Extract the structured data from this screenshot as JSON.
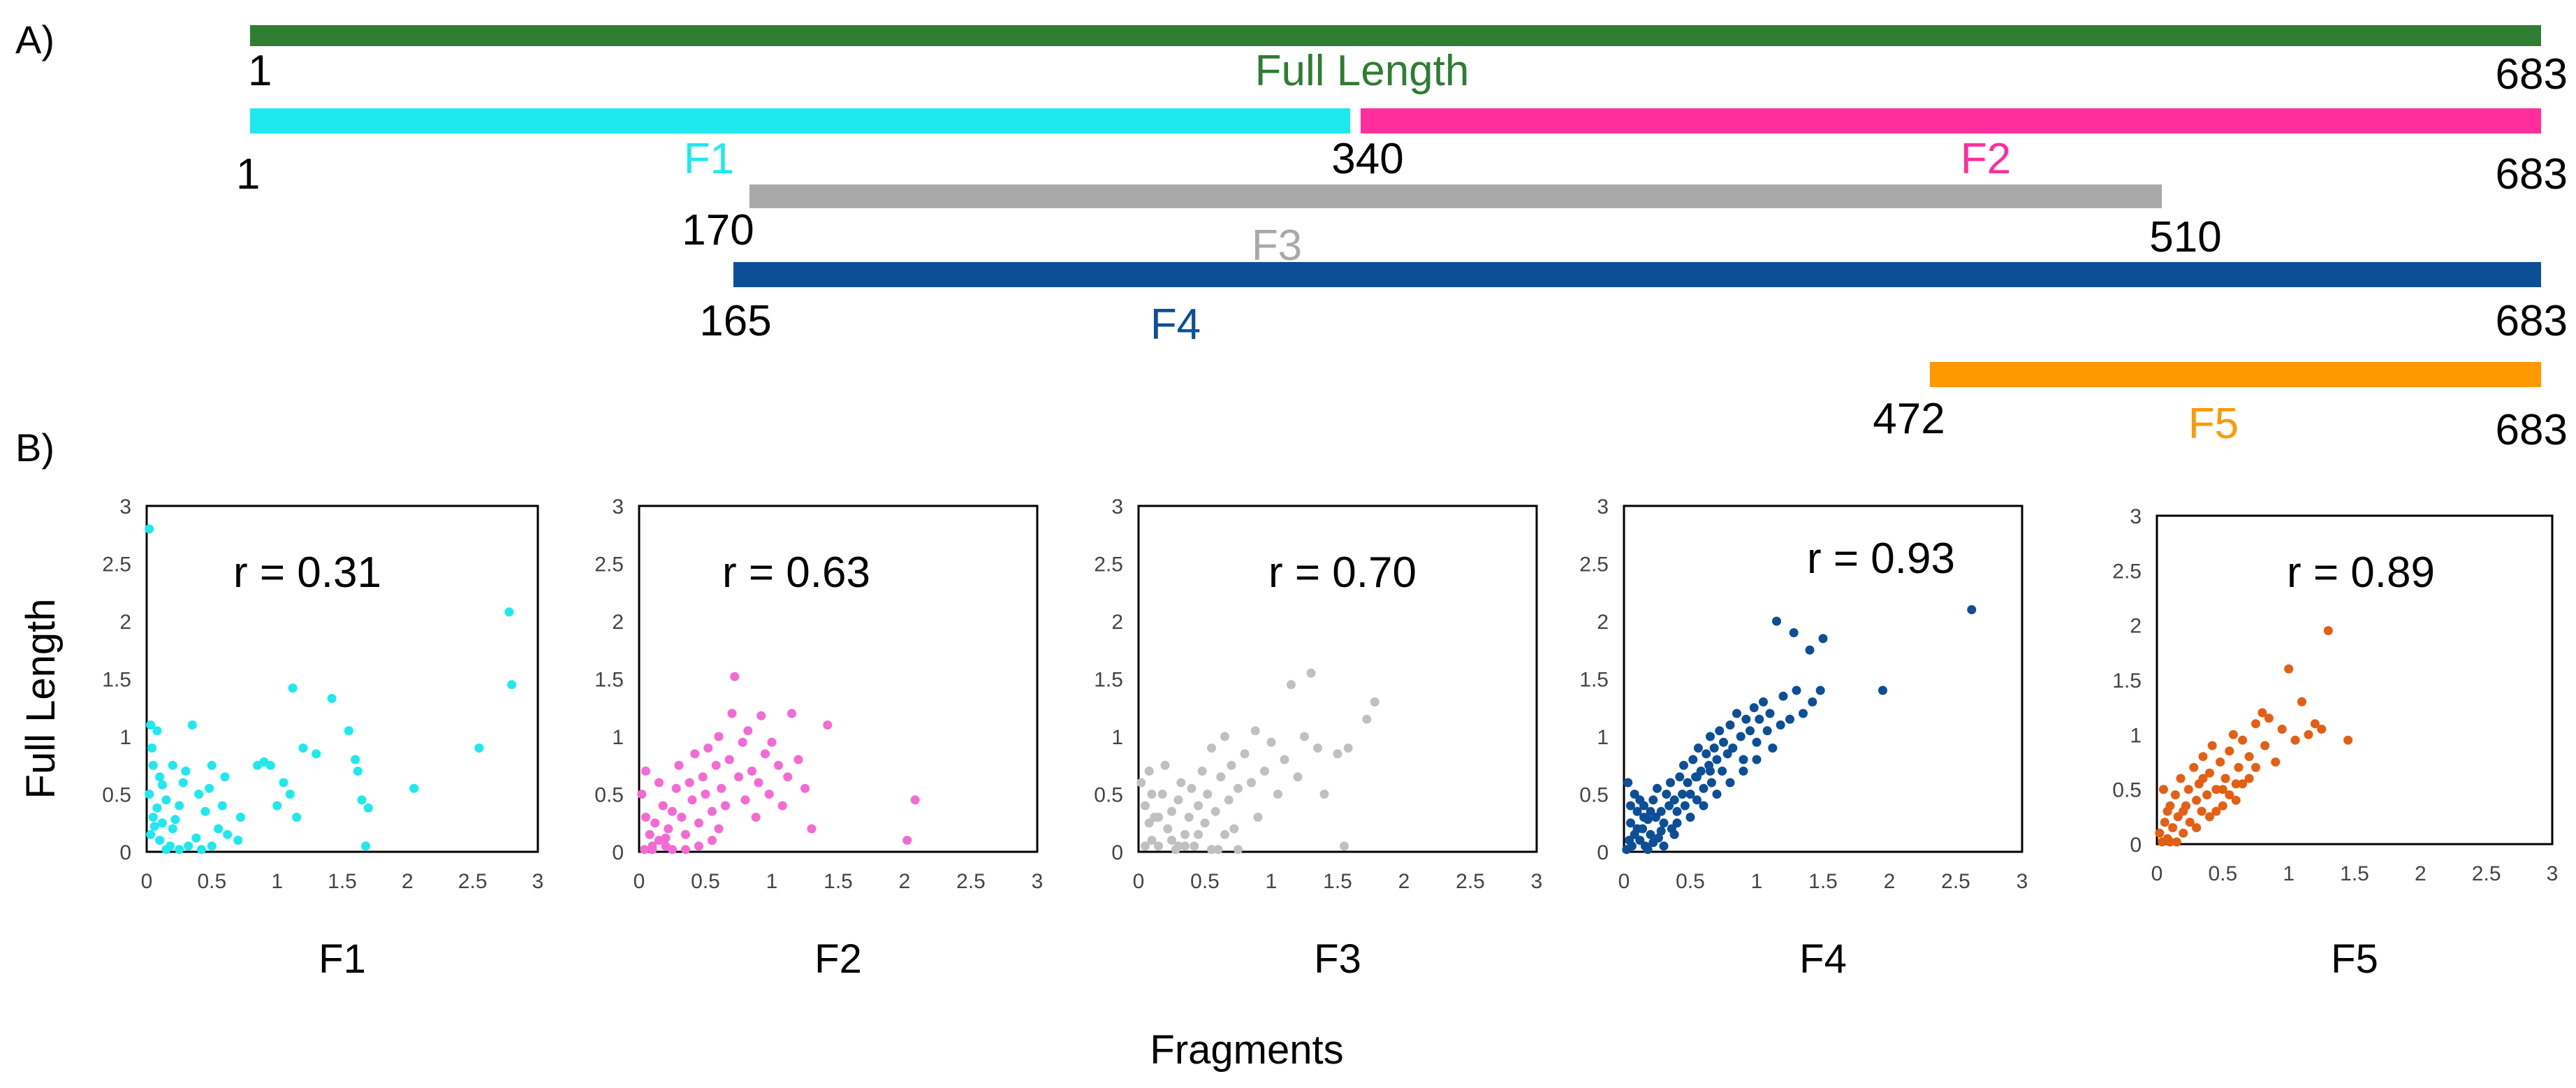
{
  "panel_a_label": "A)",
  "panel_b_label": "B)",
  "bars": [
    {
      "name": "Full Length",
      "start_label": "1",
      "end_label": "683",
      "color": "#2e7d32"
    },
    {
      "name": "F1",
      "start_label": "1",
      "end_label": "340",
      "color": "#1de9ee"
    },
    {
      "name": "F2",
      "start_label": "340",
      "end_label": "683",
      "color": "#ff2e9c"
    },
    {
      "name": "F3",
      "start_label": "170",
      "end_label": "510",
      "color": "#a9a9a9"
    },
    {
      "name": "F4",
      "start_label": "165",
      "end_label": "683",
      "color": "#0d4f96"
    },
    {
      "name": "F5",
      "start_label": "472",
      "end_label": "683",
      "color": "#ff9900"
    }
  ],
  "chart_data": [
    {
      "type": "scatter",
      "title": "",
      "xlabel": "F1",
      "ylabel": "Full Length",
      "xlim": [
        0,
        3
      ],
      "ylim": [
        0,
        3
      ],
      "ticks": [
        "0",
        "0.5",
        "1",
        "1.5",
        "2",
        "2.5",
        "3"
      ],
      "r_label": "r = 0.31",
      "color": "#1de9ee",
      "points": [
        [
          0.02,
          2.8
        ],
        [
          0.03,
          1.1
        ],
        [
          0.08,
          1.05
        ],
        [
          0.05,
          0.75
        ],
        [
          0.1,
          0.65
        ],
        [
          0.02,
          0.5
        ],
        [
          0.15,
          0.45
        ],
        [
          0.05,
          0.3
        ],
        [
          0.12,
          0.25
        ],
        [
          0.2,
          0.2
        ],
        [
          0.03,
          0.15
        ],
        [
          0.1,
          0.1
        ],
        [
          0.18,
          0.05
        ],
        [
          0.25,
          0.02
        ],
        [
          0.3,
          0.7
        ],
        [
          0.35,
          1.1
        ],
        [
          0.4,
          0.5
        ],
        [
          0.45,
          0.35
        ],
        [
          0.5,
          0.75
        ],
        [
          0.55,
          0.2
        ],
        [
          0.6,
          0.65
        ],
        [
          0.32,
          0.05
        ],
        [
          0.42,
          0.02
        ],
        [
          0.25,
          0.4
        ],
        [
          0.28,
          0.6
        ],
        [
          0.48,
          0.55
        ],
        [
          0.58,
          0.4
        ],
        [
          0.62,
          0.15
        ],
        [
          0.7,
          0.1
        ],
        [
          0.85,
          0.75
        ],
        [
          0.9,
          0.78
        ],
        [
          0.95,
          0.75
        ],
        [
          1.05,
          0.6
        ],
        [
          1.1,
          0.5
        ],
        [
          1.15,
          0.3
        ],
        [
          1.12,
          1.42
        ],
        [
          1.2,
          0.9
        ],
        [
          1.3,
          0.85
        ],
        [
          1.42,
          1.33
        ],
        [
          1.55,
          1.05
        ],
        [
          1.6,
          0.8
        ],
        [
          1.62,
          0.7
        ],
        [
          1.65,
          0.45
        ],
        [
          1.7,
          0.38
        ],
        [
          1.68,
          0.05
        ],
        [
          2.05,
          0.55
        ],
        [
          2.55,
          0.9
        ],
        [
          2.78,
          2.08
        ],
        [
          2.8,
          1.45
        ],
        [
          0.15,
          0.02
        ],
        [
          0.06,
          0.22
        ],
        [
          0.22,
          0.28
        ],
        [
          0.38,
          0.12
        ],
        [
          0.72,
          0.3
        ],
        [
          1.0,
          0.4
        ],
        [
          0.5,
          0.05
        ],
        [
          0.08,
          0.38
        ],
        [
          0.12,
          0.58
        ],
        [
          0.2,
          0.75
        ],
        [
          0.04,
          0.9
        ]
      ]
    },
    {
      "type": "scatter",
      "title": "",
      "xlabel": "F2",
      "ylabel": "",
      "xlim": [
        0,
        3
      ],
      "ylim": [
        0,
        3
      ],
      "ticks": [
        "0",
        "0.5",
        "1",
        "1.5",
        "2",
        "2.5",
        "3"
      ],
      "r_label": "r = 0.63",
      "color": "#f46ad4",
      "points": [
        [
          0.02,
          0.5
        ],
        [
          0.05,
          0.3
        ],
        [
          0.08,
          0.15
        ],
        [
          0.1,
          0.05
        ],
        [
          0.12,
          0.25
        ],
        [
          0.15,
          0.1
        ],
        [
          0.18,
          0.4
        ],
        [
          0.2,
          0.05
        ],
        [
          0.22,
          0.2
        ],
        [
          0.25,
          0.35
        ],
        [
          0.28,
          0.55
        ],
        [
          0.3,
          0.75
        ],
        [
          0.32,
          0.3
        ],
        [
          0.35,
          0.15
        ],
        [
          0.38,
          0.6
        ],
        [
          0.4,
          0.45
        ],
        [
          0.42,
          0.85
        ],
        [
          0.45,
          0.25
        ],
        [
          0.48,
          0.65
        ],
        [
          0.5,
          0.5
        ],
        [
          0.52,
          0.9
        ],
        [
          0.55,
          0.35
        ],
        [
          0.58,
          0.75
        ],
        [
          0.6,
          1.0
        ],
        [
          0.62,
          0.55
        ],
        [
          0.65,
          0.4
        ],
        [
          0.68,
          0.8
        ],
        [
          0.7,
          1.2
        ],
        [
          0.72,
          1.52
        ],
        [
          0.75,
          0.65
        ],
        [
          0.78,
          0.95
        ],
        [
          0.8,
          0.45
        ],
        [
          0.82,
          1.05
        ],
        [
          0.85,
          0.7
        ],
        [
          0.88,
          0.3
        ],
        [
          0.9,
          0.6
        ],
        [
          0.92,
          1.18
        ],
        [
          0.95,
          0.85
        ],
        [
          0.98,
          0.5
        ],
        [
          1.0,
          0.95
        ],
        [
          1.05,
          0.75
        ],
        [
          1.08,
          0.4
        ],
        [
          1.12,
          0.65
        ],
        [
          1.15,
          1.2
        ],
        [
          1.2,
          0.8
        ],
        [
          1.25,
          0.55
        ],
        [
          1.3,
          0.2
        ],
        [
          1.42,
          1.1
        ],
        [
          2.02,
          0.1
        ],
        [
          2.08,
          0.45
        ],
        [
          0.04,
          0.02
        ],
        [
          0.1,
          0.02
        ],
        [
          0.2,
          0.12
        ],
        [
          0.35,
          0.02
        ],
        [
          0.45,
          0.05
        ],
        [
          0.6,
          0.2
        ],
        [
          0.15,
          0.6
        ],
        [
          0.05,
          0.7
        ],
        [
          0.25,
          0.02
        ],
        [
          0.55,
          0.1
        ]
      ]
    },
    {
      "type": "scatter",
      "title": "",
      "xlabel": "F3",
      "ylabel": "",
      "xlim": [
        0,
        3
      ],
      "ylim": [
        0,
        3
      ],
      "ticks": [
        "0",
        "0.5",
        "1",
        "1.5",
        "2",
        "2.5",
        "3"
      ],
      "r_label": "r = 0.70",
      "color": "#c0c0c0",
      "points": [
        [
          0.02,
          0.6
        ],
        [
          0.05,
          0.4
        ],
        [
          0.08,
          0.25
        ],
        [
          0.1,
          0.1
        ],
        [
          0.12,
          0.3
        ],
        [
          0.15,
          0.05
        ],
        [
          0.18,
          0.5
        ],
        [
          0.2,
          0.75
        ],
        [
          0.22,
          0.2
        ],
        [
          0.25,
          0.35
        ],
        [
          0.28,
          0.02
        ],
        [
          0.3,
          0.45
        ],
        [
          0.32,
          0.6
        ],
        [
          0.35,
          0.15
        ],
        [
          0.38,
          0.3
        ],
        [
          0.4,
          0.55
        ],
        [
          0.42,
          0.05
        ],
        [
          0.45,
          0.4
        ],
        [
          0.48,
          0.7
        ],
        [
          0.5,
          0.25
        ],
        [
          0.52,
          0.5
        ],
        [
          0.55,
          0.9
        ],
        [
          0.58,
          0.35
        ],
        [
          0.6,
          0.02
        ],
        [
          0.62,
          0.65
        ],
        [
          0.65,
          1.0
        ],
        [
          0.68,
          0.45
        ],
        [
          0.7,
          0.75
        ],
        [
          0.72,
          0.2
        ],
        [
          0.75,
          0.55
        ],
        [
          0.8,
          0.85
        ],
        [
          0.85,
          0.6
        ],
        [
          0.88,
          1.05
        ],
        [
          0.9,
          0.3
        ],
        [
          0.95,
          0.7
        ],
        [
          1.0,
          0.95
        ],
        [
          1.05,
          0.5
        ],
        [
          1.1,
          0.8
        ],
        [
          1.15,
          1.45
        ],
        [
          1.2,
          0.65
        ],
        [
          1.25,
          1.0
        ],
        [
          1.3,
          1.55
        ],
        [
          1.35,
          0.9
        ],
        [
          1.4,
          0.5
        ],
        [
          1.5,
          0.85
        ],
        [
          1.55,
          0.05
        ],
        [
          1.58,
          0.9
        ],
        [
          1.72,
          1.15
        ],
        [
          1.78,
          1.3
        ],
        [
          0.05,
          0.05
        ],
        [
          0.1,
          0.5
        ],
        [
          0.15,
          0.3
        ],
        [
          0.25,
          0.1
        ],
        [
          0.35,
          0.05
        ],
        [
          0.45,
          0.15
        ],
        [
          0.55,
          0.02
        ],
        [
          0.75,
          0.02
        ],
        [
          0.65,
          0.15
        ],
        [
          0.08,
          0.7
        ],
        [
          0.3,
          0.05
        ]
      ]
    },
    {
      "type": "scatter",
      "title": "",
      "xlabel": "F4",
      "ylabel": "",
      "xlim": [
        0,
        3
      ],
      "ylim": [
        0,
        3
      ],
      "ticks": [
        "0",
        "0.5",
        "1",
        "1.5",
        "2",
        "2.5",
        "3"
      ],
      "r_label": "r = 0.93",
      "color": "#0d4f96",
      "points": [
        [
          0.02,
          0.02
        ],
        [
          0.04,
          0.1
        ],
        [
          0.05,
          0.25
        ],
        [
          0.06,
          0.05
        ],
        [
          0.08,
          0.15
        ],
        [
          0.1,
          0.35
        ],
        [
          0.12,
          0.1
        ],
        [
          0.14,
          0.2
        ],
        [
          0.15,
          0.4
        ],
        [
          0.16,
          0.05
        ],
        [
          0.18,
          0.28
        ],
        [
          0.2,
          0.15
        ],
        [
          0.22,
          0.45
        ],
        [
          0.24,
          0.3
        ],
        [
          0.25,
          0.55
        ],
        [
          0.26,
          0.12
        ],
        [
          0.28,
          0.35
        ],
        [
          0.3,
          0.25
        ],
        [
          0.32,
          0.5
        ],
        [
          0.34,
          0.4
        ],
        [
          0.35,
          0.6
        ],
        [
          0.36,
          0.2
        ],
        [
          0.38,
          0.45
        ],
        [
          0.4,
          0.35
        ],
        [
          0.42,
          0.65
        ],
        [
          0.44,
          0.5
        ],
        [
          0.45,
          0.75
        ],
        [
          0.46,
          0.4
        ],
        [
          0.48,
          0.6
        ],
        [
          0.5,
          0.5
        ],
        [
          0.52,
          0.8
        ],
        [
          0.54,
          0.65
        ],
        [
          0.55,
          0.45
        ],
        [
          0.56,
          0.9
        ],
        [
          0.58,
          0.7
        ],
        [
          0.6,
          0.55
        ],
        [
          0.62,
          0.85
        ],
        [
          0.64,
          0.75
        ],
        [
          0.65,
          1.0
        ],
        [
          0.66,
          0.6
        ],
        [
          0.68,
          0.9
        ],
        [
          0.7,
          0.8
        ],
        [
          0.72,
          1.05
        ],
        [
          0.74,
          0.7
        ],
        [
          0.75,
          0.95
        ],
        [
          0.78,
          0.85
        ],
        [
          0.8,
          1.1
        ],
        [
          0.82,
          0.9
        ],
        [
          0.85,
          1.2
        ],
        [
          0.88,
          1.0
        ],
        [
          0.9,
          0.8
        ],
        [
          0.92,
          1.15
        ],
        [
          0.95,
          1.05
        ],
        [
          0.98,
          1.25
        ],
        [
          1.0,
          0.95
        ],
        [
          1.02,
          1.15
        ],
        [
          1.05,
          1.3
        ],
        [
          1.08,
          1.05
        ],
        [
          1.1,
          1.2
        ],
        [
          1.12,
          0.9
        ],
        [
          1.15,
          2.0
        ],
        [
          1.18,
          1.1
        ],
        [
          1.2,
          1.35
        ],
        [
          1.25,
          1.15
        ],
        [
          1.28,
          1.9
        ],
        [
          1.3,
          1.4
        ],
        [
          1.35,
          1.2
        ],
        [
          1.4,
          1.75
        ],
        [
          1.42,
          1.3
        ],
        [
          1.5,
          1.85
        ],
        [
          1.48,
          1.4
        ],
        [
          1.95,
          1.4
        ],
        [
          2.62,
          2.1
        ],
        [
          0.03,
          0.6
        ],
        [
          0.08,
          0.5
        ],
        [
          0.12,
          0.45
        ],
        [
          0.18,
          0.02
        ],
        [
          0.22,
          0.08
        ],
        [
          0.3,
          0.05
        ],
        [
          0.38,
          0.15
        ],
        [
          0.05,
          0.4
        ],
        [
          0.1,
          0.2
        ],
        [
          0.15,
          0.3
        ],
        [
          0.2,
          0.35
        ],
        [
          0.28,
          0.18
        ],
        [
          0.4,
          0.25
        ],
        [
          0.5,
          0.3
        ],
        [
          0.6,
          0.4
        ],
        [
          0.7,
          0.5
        ],
        [
          0.8,
          0.6
        ],
        [
          0.9,
          0.7
        ],
        [
          1.0,
          0.8
        ],
        [
          0.55,
          0.65
        ],
        [
          0.65,
          0.7
        ]
      ]
    },
    {
      "type": "scatter",
      "title": "",
      "xlabel": "F5",
      "ylabel": "",
      "xlim": [
        0,
        3
      ],
      "ylim": [
        0,
        3
      ],
      "ticks": [
        "0",
        "0.5",
        "1",
        "1.5",
        "2",
        "2.5",
        "3"
      ],
      "r_label": "r = 0.89",
      "color": "#e35f13",
      "points": [
        [
          0.02,
          0.1
        ],
        [
          0.04,
          0.02
        ],
        [
          0.05,
          0.5
        ],
        [
          0.06,
          0.2
        ],
        [
          0.08,
          0.05
        ],
        [
          0.1,
          0.35
        ],
        [
          0.12,
          0.15
        ],
        [
          0.14,
          0.45
        ],
        [
          0.15,
          0.02
        ],
        [
          0.16,
          0.25
        ],
        [
          0.18,
          0.6
        ],
        [
          0.2,
          0.1
        ],
        [
          0.22,
          0.35
        ],
        [
          0.24,
          0.5
        ],
        [
          0.25,
          0.2
        ],
        [
          0.28,
          0.7
        ],
        [
          0.3,
          0.4
        ],
        [
          0.32,
          0.55
        ],
        [
          0.34,
          0.3
        ],
        [
          0.35,
          0.8
        ],
        [
          0.38,
          0.45
        ],
        [
          0.4,
          0.65
        ],
        [
          0.42,
          0.9
        ],
        [
          0.45,
          0.5
        ],
        [
          0.48,
          0.75
        ],
        [
          0.5,
          0.35
        ],
        [
          0.52,
          0.6
        ],
        [
          0.55,
          0.85
        ],
        [
          0.58,
          1.0
        ],
        [
          0.6,
          0.55
        ],
        [
          0.62,
          0.7
        ],
        [
          0.65,
          0.95
        ],
        [
          0.7,
          0.8
        ],
        [
          0.75,
          1.1
        ],
        [
          0.8,
          1.2
        ],
        [
          0.82,
          0.9
        ],
        [
          0.85,
          1.15
        ],
        [
          0.9,
          0.75
        ],
        [
          0.95,
          1.05
        ],
        [
          1.0,
          1.6
        ],
        [
          1.05,
          0.95
        ],
        [
          1.1,
          1.3
        ],
        [
          1.15,
          1.0
        ],
        [
          1.2,
          1.1
        ],
        [
          1.25,
          1.05
        ],
        [
          1.3,
          1.95
        ],
        [
          1.45,
          0.95
        ],
        [
          0.1,
          0.02
        ],
        [
          0.2,
          0.3
        ],
        [
          0.3,
          0.15
        ],
        [
          0.4,
          0.25
        ],
        [
          0.5,
          0.5
        ],
        [
          0.6,
          0.4
        ],
        [
          0.7,
          0.6
        ],
        [
          0.08,
          0.3
        ],
        [
          0.35,
          0.6
        ],
        [
          0.45,
          0.3
        ],
        [
          0.55,
          0.45
        ],
        [
          0.65,
          0.55
        ],
        [
          0.75,
          0.7
        ]
      ]
    }
  ],
  "y_axis_title": "Full Length",
  "x_axis_title": "Fragments"
}
